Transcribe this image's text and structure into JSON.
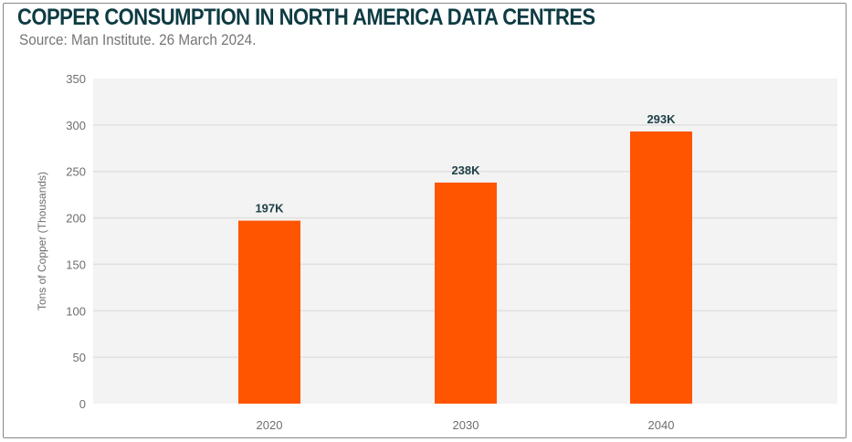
{
  "header": {
    "title": "COPPER CONSUMPTION IN NORTH AMERICA DATA CENTRES",
    "subtitle": "Source: Man Institute. 26 March 2024."
  },
  "colors": {
    "bar": "#ff5500",
    "plot_background": "#f3f3f3",
    "gridline": "#e0e0e0",
    "title": "#0e3b43",
    "data_label": "#1f4048"
  },
  "chart_data": {
    "type": "bar",
    "title": "COPPER CONSUMPTION IN NORTH AMERICA DATA CENTRES",
    "subtitle": "Source: Man Institute. 26 March 2024.",
    "categories": [
      "2020",
      "2030",
      "2040"
    ],
    "values": [
      197,
      238,
      293
    ],
    "data_labels": [
      "197K",
      "238K",
      "293K"
    ],
    "xlabel": "",
    "ylabel": "Tons of Copper (Thousands)",
    "ylim": [
      0,
      350
    ],
    "yticks": [
      0,
      50,
      100,
      150,
      200,
      250,
      300,
      350
    ],
    "grid": true,
    "legend": "none"
  }
}
